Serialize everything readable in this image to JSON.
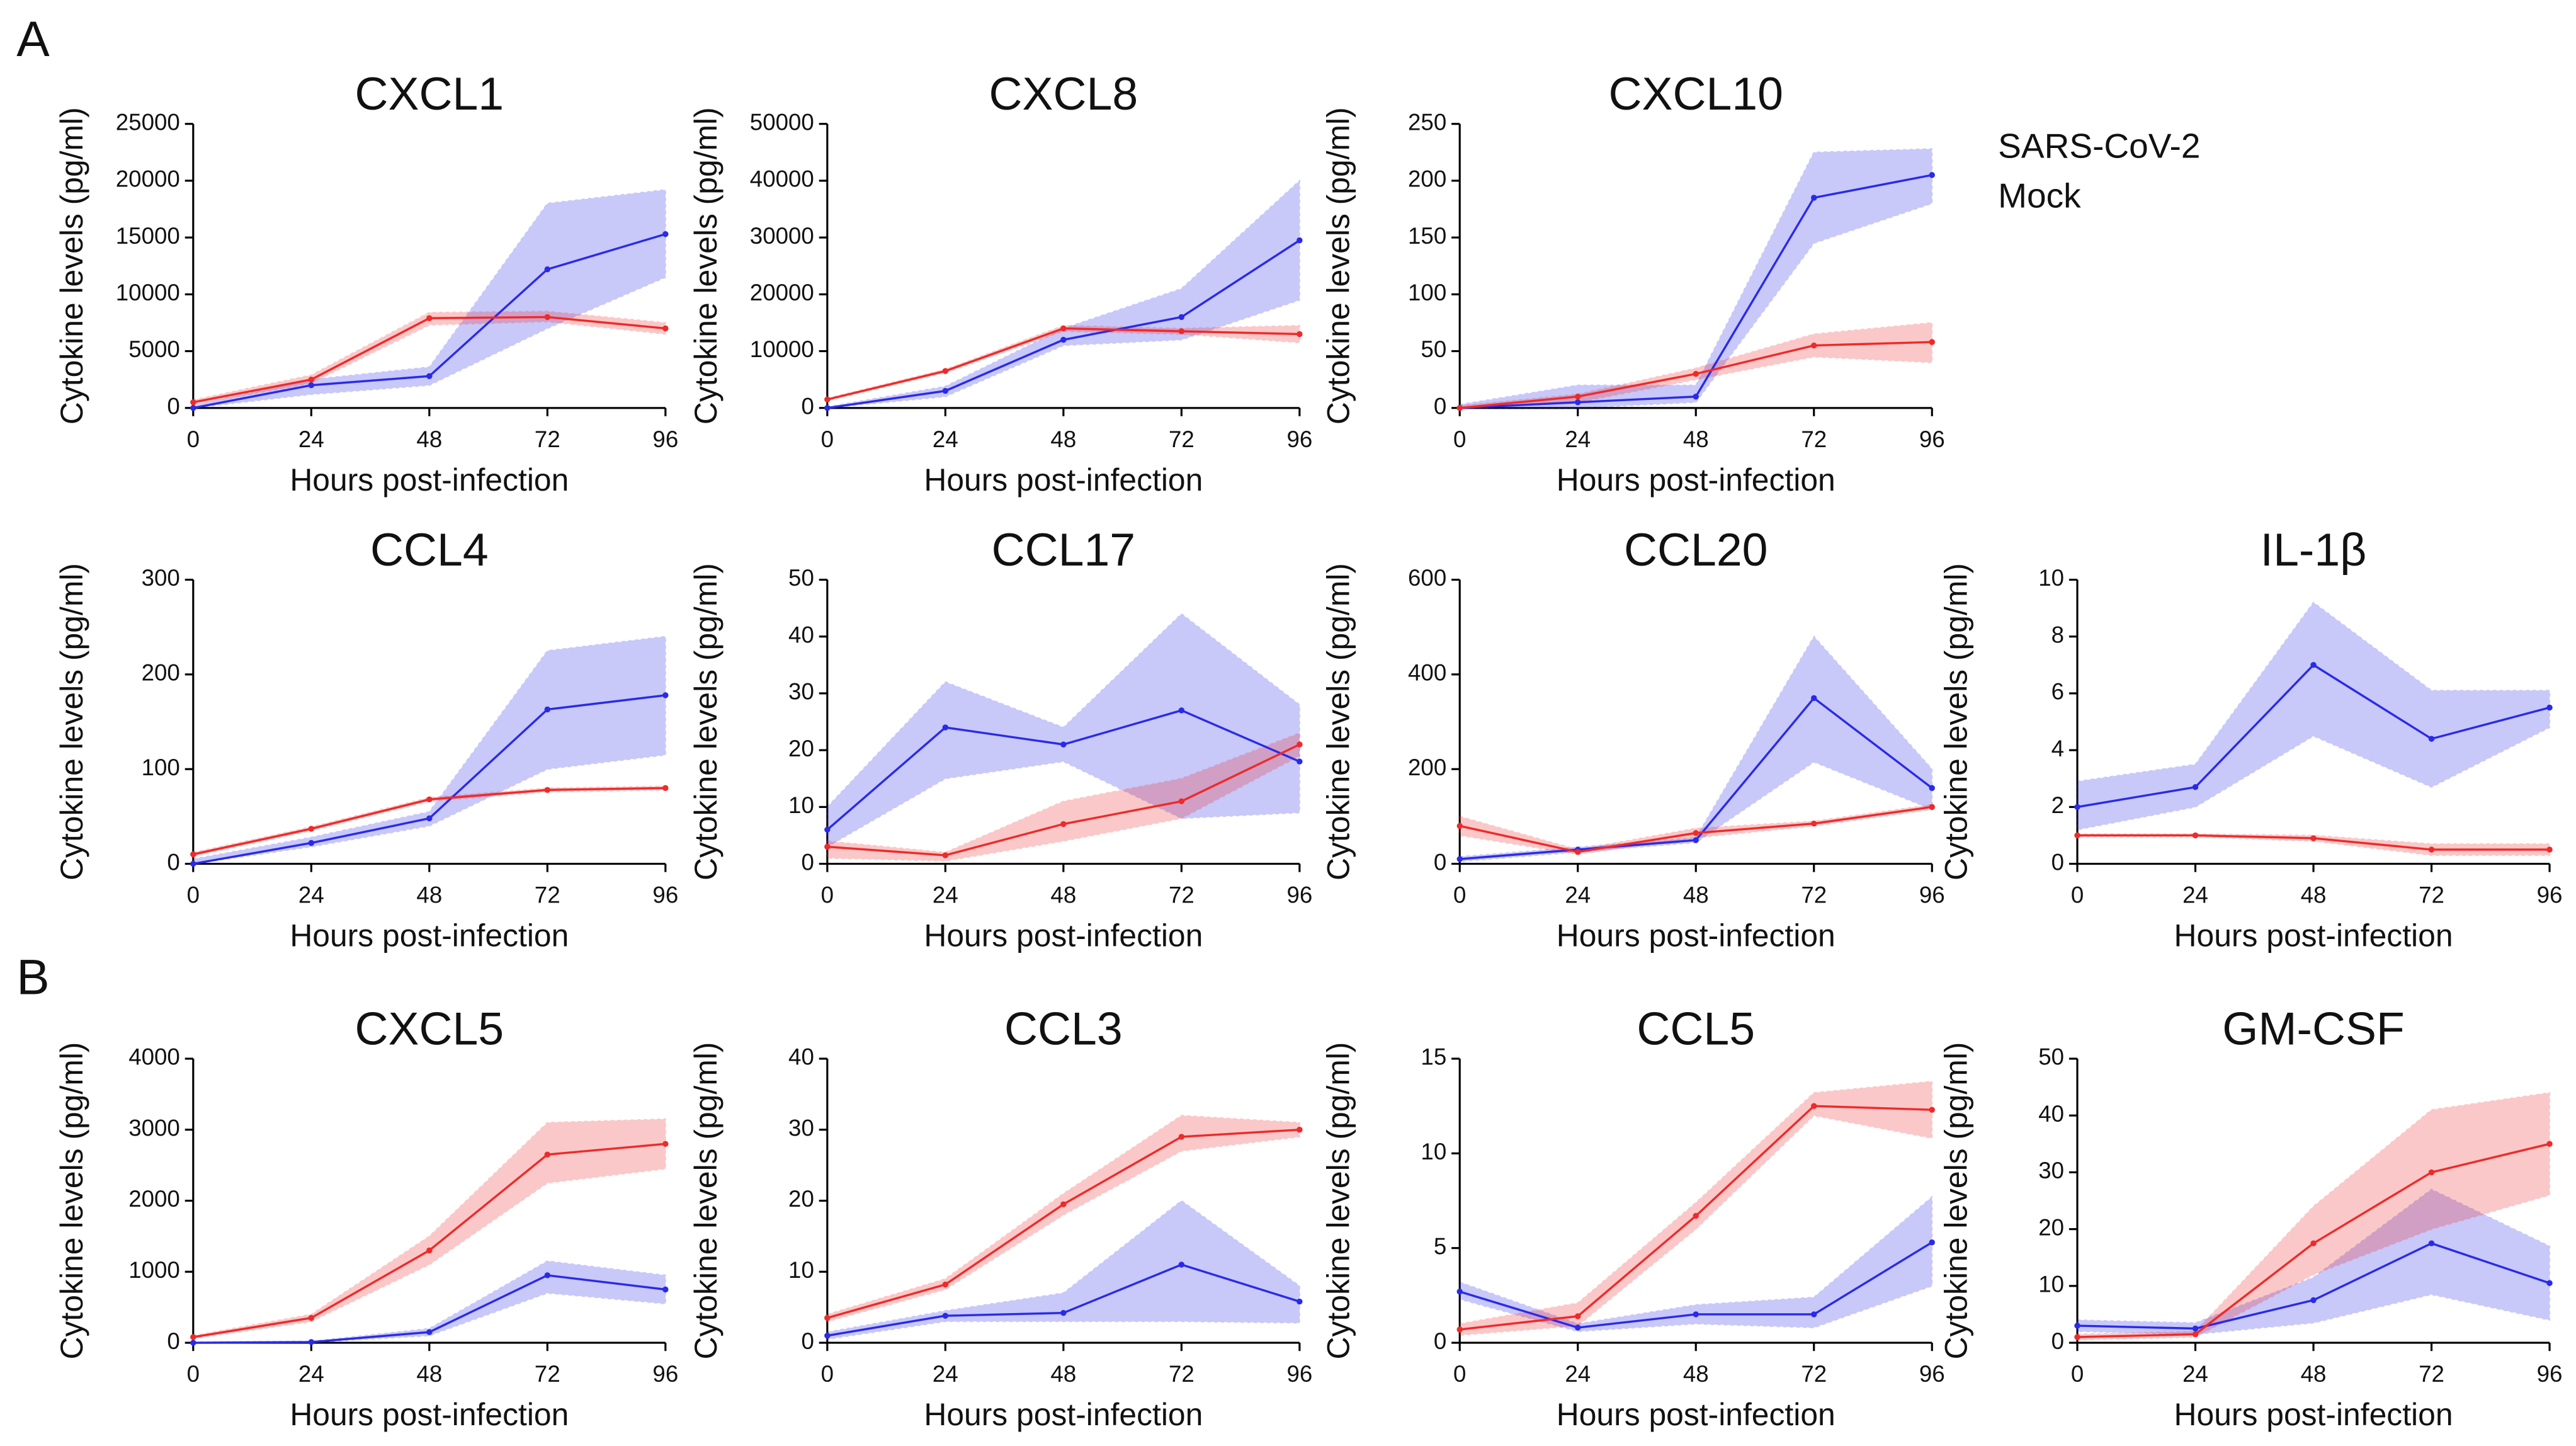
{
  "panel_labels": [
    "A",
    "B"
  ],
  "chart_data": [
    {
      "type": "line",
      "title": "CXCL1",
      "xlabel": "Hours post-infection",
      "ylabel": "Cytokine levels (pg/ml)",
      "x": [
        0,
        24,
        48,
        72,
        96
      ],
      "xlim": [
        0,
        96
      ],
      "xticks": [
        0,
        24,
        48,
        72,
        96
      ],
      "ylim": [
        0,
        25000
      ],
      "yticks": [
        0,
        5000,
        10000,
        15000,
        20000,
        25000
      ],
      "series": [
        {
          "name": "SARS-CoV-2",
          "color": "#2a2ae8",
          "values": [
            0,
            2000,
            2800,
            12200,
            15300
          ],
          "lower": [
            0,
            1200,
            2000,
            7000,
            11500
          ],
          "upper": [
            200,
            2500,
            3600,
            18000,
            19200
          ]
        },
        {
          "name": "Mock",
          "color": "#ee2a2a",
          "values": [
            500,
            2500,
            7900,
            8000,
            7000
          ],
          "lower": [
            300,
            2200,
            7300,
            7600,
            6500
          ],
          "upper": [
            700,
            2900,
            8400,
            8500,
            7500
          ]
        }
      ]
    },
    {
      "type": "line",
      "title": "CXCL8",
      "xlabel": "Hours post-infection",
      "ylabel": "Cytokine levels (pg/ml)",
      "x": [
        0,
        24,
        48,
        72,
        96
      ],
      "xlim": [
        0,
        96
      ],
      "xticks": [
        0,
        24,
        48,
        72,
        96
      ],
      "ylim": [
        0,
        50000
      ],
      "yticks": [
        0,
        10000,
        20000,
        30000,
        40000,
        50000
      ],
      "series": [
        {
          "name": "SARS-CoV-2",
          "color": "#2a2ae8",
          "values": [
            0,
            3000,
            12000,
            16000,
            29500
          ],
          "lower": [
            0,
            2000,
            11000,
            12000,
            19000
          ],
          "upper": [
            200,
            3800,
            14000,
            21000,
            40000
          ]
        },
        {
          "name": "Mock",
          "color": "#ee2a2a",
          "values": [
            1500,
            6500,
            14000,
            13500,
            13000
          ],
          "lower": [
            1300,
            6200,
            13500,
            13000,
            11500
          ],
          "upper": [
            1700,
            6800,
            14500,
            14000,
            14500
          ]
        }
      ]
    },
    {
      "type": "line",
      "title": "CXCL10",
      "xlabel": "Hours post-infection",
      "ylabel": "Cytokine levels (pg/ml)",
      "x": [
        0,
        24,
        48,
        72,
        96
      ],
      "xlim": [
        0,
        96
      ],
      "xticks": [
        0,
        24,
        48,
        72,
        96
      ],
      "ylim": [
        0,
        250
      ],
      "yticks": [
        0,
        50,
        100,
        150,
        200,
        250
      ],
      "series": [
        {
          "name": "SARS-CoV-2",
          "color": "#2a2ae8",
          "values": [
            0,
            5,
            10,
            185,
            205
          ],
          "lower": [
            0,
            0,
            5,
            145,
            180
          ],
          "upper": [
            3,
            20,
            20,
            225,
            228
          ]
        },
        {
          "name": "Mock",
          "color": "#ee2a2a",
          "values": [
            0,
            10,
            30,
            55,
            58
          ],
          "lower": [
            0,
            5,
            25,
            45,
            40
          ],
          "upper": [
            2,
            12,
            35,
            65,
            75
          ]
        }
      ]
    },
    {
      "type": "line",
      "title": "CCL4",
      "xlabel": "Hours post-infection",
      "ylabel": "Cytokine levels (pg/ml)",
      "x": [
        0,
        24,
        48,
        72,
        96
      ],
      "xlim": [
        0,
        96
      ],
      "xticks": [
        0,
        24,
        48,
        72,
        96
      ],
      "ylim": [
        0,
        300
      ],
      "yticks": [
        0,
        100,
        200,
        300
      ],
      "series": [
        {
          "name": "SARS-CoV-2",
          "color": "#2a2ae8",
          "values": [
            0,
            22,
            48,
            163,
            178
          ],
          "lower": [
            0,
            18,
            40,
            100,
            115
          ],
          "upper": [
            5,
            28,
            55,
            225,
            240
          ]
        },
        {
          "name": "Mock",
          "color": "#ee2a2a",
          "values": [
            10,
            37,
            68,
            78,
            80
          ],
          "lower": [
            8,
            35,
            66,
            76,
            78
          ],
          "upper": [
            12,
            39,
            70,
            80,
            82
          ]
        }
      ]
    },
    {
      "type": "line",
      "title": "CCL17",
      "xlabel": "Hours post-infection",
      "ylabel": "Cytokine levels (pg/ml)",
      "x": [
        0,
        24,
        48,
        72,
        96
      ],
      "xlim": [
        0,
        96
      ],
      "xticks": [
        0,
        24,
        48,
        72,
        96
      ],
      "ylim": [
        0,
        50
      ],
      "yticks": [
        0,
        10,
        20,
        30,
        40,
        50
      ],
      "series": [
        {
          "name": "SARS-CoV-2",
          "color": "#2a2ae8",
          "values": [
            6,
            24,
            21,
            27,
            18
          ],
          "lower": [
            3,
            15,
            18,
            8,
            9
          ],
          "upper": [
            10,
            32,
            24,
            44,
            28
          ]
        },
        {
          "name": "Mock",
          "color": "#ee2a2a",
          "values": [
            3,
            1.5,
            7,
            11,
            21
          ],
          "lower": [
            1,
            0.5,
            4,
            8,
            19
          ],
          "upper": [
            4,
            2,
            11,
            15,
            23
          ]
        }
      ]
    },
    {
      "type": "line",
      "title": "CCL20",
      "xlabel": "Hours post-infection",
      "ylabel": "Cytokine levels (pg/ml)",
      "x": [
        0,
        24,
        48,
        72,
        96
      ],
      "xlim": [
        0,
        96
      ],
      "xticks": [
        0,
        24,
        48,
        72,
        96
      ],
      "ylim": [
        0,
        600
      ],
      "yticks": [
        0,
        200,
        400,
        600
      ],
      "series": [
        {
          "name": "SARS-CoV-2",
          "color": "#2a2ae8",
          "values": [
            10,
            30,
            50,
            350,
            160
          ],
          "lower": [
            5,
            25,
            45,
            215,
            115
          ],
          "upper": [
            15,
            35,
            55,
            480,
            200
          ]
        },
        {
          "name": "Mock",
          "color": "#ee2a2a",
          "values": [
            80,
            25,
            65,
            85,
            120
          ],
          "lower": [
            60,
            20,
            55,
            80,
            115
          ],
          "upper": [
            100,
            30,
            75,
            90,
            125
          ]
        }
      ]
    },
    {
      "type": "line",
      "title": "IL-1β",
      "xlabel": "Hours post-infection",
      "ylabel": "Cytokine levels (pg/ml)",
      "x": [
        0,
        24,
        48,
        72,
        96
      ],
      "xlim": [
        0,
        96
      ],
      "xticks": [
        0,
        24,
        48,
        72,
        96
      ],
      "ylim": [
        0,
        10
      ],
      "yticks": [
        0,
        2,
        4,
        6,
        8,
        10
      ],
      "series": [
        {
          "name": "SARS-CoV-2",
          "color": "#2a2ae8",
          "values": [
            2,
            2.7,
            7,
            4.4,
            5.5
          ],
          "lower": [
            1.2,
            2,
            4.5,
            2.7,
            4.8
          ],
          "upper": [
            2.9,
            3.5,
            9.2,
            6.1,
            6.1
          ]
        },
        {
          "name": "Mock",
          "color": "#ee2a2a",
          "values": [
            1,
            1,
            0.9,
            0.5,
            0.5
          ],
          "lower": [
            0.95,
            0.95,
            0.8,
            0.3,
            0.3
          ],
          "upper": [
            1.05,
            1.05,
            1.0,
            0.7,
            0.7
          ]
        }
      ]
    },
    {
      "type": "line",
      "title": "CXCL5",
      "xlabel": "Hours post-infection",
      "ylabel": "Cytokine levels (pg/ml)",
      "x": [
        0,
        24,
        48,
        72,
        96
      ],
      "xlim": [
        0,
        96
      ],
      "xticks": [
        0,
        24,
        48,
        72,
        96
      ],
      "ylim": [
        0,
        4000
      ],
      "yticks": [
        0,
        1000,
        2000,
        3000,
        4000
      ],
      "series": [
        {
          "name": "SARS-CoV-2",
          "color": "#2a2ae8",
          "values": [
            0,
            10,
            150,
            950,
            750
          ],
          "lower": [
            0,
            5,
            100,
            700,
            550
          ],
          "upper": [
            10,
            20,
            200,
            1150,
            950
          ]
        },
        {
          "name": "Mock",
          "color": "#ee2a2a",
          "values": [
            80,
            350,
            1300,
            2650,
            2800
          ],
          "lower": [
            60,
            300,
            1100,
            2250,
            2450
          ],
          "upper": [
            100,
            400,
            1500,
            3100,
            3150
          ]
        }
      ]
    },
    {
      "type": "line",
      "title": "CCL3",
      "xlabel": "Hours post-infection",
      "ylabel": "Cytokine levels (pg/ml)",
      "x": [
        0,
        24,
        48,
        72,
        96
      ],
      "xlim": [
        0,
        96
      ],
      "xticks": [
        0,
        24,
        48,
        72,
        96
      ],
      "ylim": [
        0,
        40
      ],
      "yticks": [
        0,
        10,
        20,
        30,
        40
      ],
      "series": [
        {
          "name": "SARS-CoV-2",
          "color": "#2a2ae8",
          "values": [
            1,
            3.8,
            4.2,
            11,
            5.8
          ],
          "lower": [
            0.5,
            3,
            3,
            3,
            2.8
          ],
          "upper": [
            1.5,
            4.5,
            7,
            20,
            8
          ]
        },
        {
          "name": "Mock",
          "color": "#ee2a2a",
          "values": [
            3.5,
            8.2,
            19.5,
            29,
            30
          ],
          "lower": [
            3,
            7.5,
            18,
            27,
            29
          ],
          "upper": [
            4,
            9,
            21,
            32,
            31
          ]
        }
      ]
    },
    {
      "type": "line",
      "title": "CCL5",
      "xlabel": "Hours post-infection",
      "ylabel": "Cytokine levels (pg/ml)",
      "x": [
        0,
        24,
        48,
        72,
        96
      ],
      "xlim": [
        0,
        96
      ],
      "xticks": [
        0,
        24,
        48,
        72,
        96
      ],
      "ylim": [
        0,
        15
      ],
      "yticks": [
        0,
        5,
        10,
        15
      ],
      "series": [
        {
          "name": "SARS-CoV-2",
          "color": "#2a2ae8",
          "values": [
            2.7,
            0.8,
            1.5,
            1.5,
            5.3
          ],
          "lower": [
            2.3,
            0.6,
            1,
            0.8,
            3
          ],
          "upper": [
            3.2,
            1,
            2,
            2.4,
            7.7
          ]
        },
        {
          "name": "Mock",
          "color": "#ee2a2a",
          "values": [
            0.7,
            1.4,
            6.7,
            12.5,
            12.3
          ],
          "lower": [
            0.4,
            0.9,
            6,
            12,
            10.8
          ],
          "upper": [
            1,
            2.1,
            7.4,
            13.2,
            13.8
          ]
        }
      ]
    },
    {
      "type": "line",
      "title": "GM-CSF",
      "xlabel": "Hours post-infection",
      "ylabel": "Cytokine levels (pg/ml)",
      "x": [
        0,
        24,
        48,
        72,
        96
      ],
      "xlim": [
        0,
        96
      ],
      "xticks": [
        0,
        24,
        48,
        72,
        96
      ],
      "ylim": [
        0,
        50
      ],
      "yticks": [
        0,
        10,
        20,
        30,
        40,
        50
      ],
      "series": [
        {
          "name": "SARS-CoV-2",
          "color": "#2a2ae8",
          "values": [
            3,
            2.5,
            7.5,
            17.5,
            10.5
          ],
          "lower": [
            2,
            1.5,
            3.5,
            8.5,
            4
          ],
          "upper": [
            4,
            3.5,
            11.5,
            27,
            17
          ]
        },
        {
          "name": "Mock",
          "color": "#ee2a2a",
          "values": [
            1,
            1.5,
            17.5,
            30,
            35
          ],
          "lower": [
            0.5,
            1,
            12,
            20,
            26
          ],
          "upper": [
            1.5,
            2,
            24,
            41,
            44
          ]
        }
      ]
    }
  ]
}
